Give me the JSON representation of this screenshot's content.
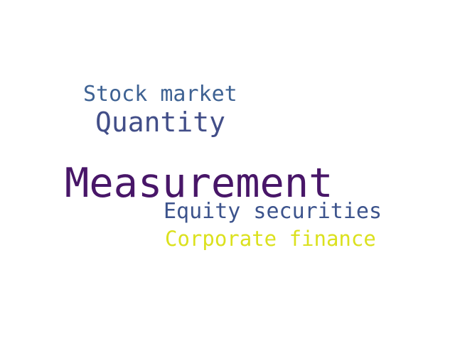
{
  "words": [
    {
      "text": "Stock market",
      "color": "#3e6293"
    },
    {
      "text": "Quantity",
      "color": "#424e88"
    },
    {
      "text": "Measurement",
      "color": "#481668"
    },
    {
      "text": "Equity securities",
      "color": "#3c538c"
    },
    {
      "text": "Corporate finance",
      "color": "#dbe11e"
    }
  ]
}
